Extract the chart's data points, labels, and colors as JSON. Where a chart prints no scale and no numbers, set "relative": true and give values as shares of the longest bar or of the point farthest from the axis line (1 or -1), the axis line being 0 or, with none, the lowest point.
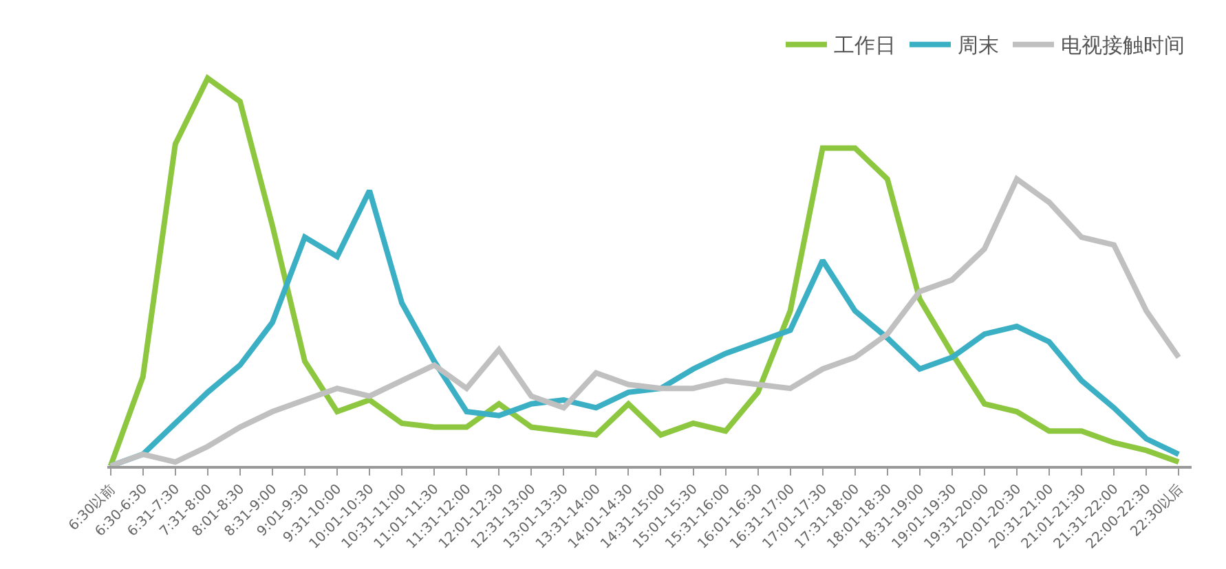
{
  "chart_data": {
    "type": "line",
    "relative": true,
    "legend": "top right",
    "marker": "none",
    "line_style": "solid",
    "categories": [
      "6:30以前",
      "6:30-6:30",
      "6:31-7:30",
      "7:31-8:00",
      "8:01-8:30",
      "8:31-9:00",
      "9:01-9:30",
      "9:31-10:00",
      "10:01-10:30",
      "10:31-11:00",
      "11:01-11:30",
      "11:31-12:00",
      "12:01-12:30",
      "12:31-13:00",
      "13:01-13:30",
      "13:31-14:00",
      "14:01-14:30",
      "14:31-15:00",
      "15:01-15:30",
      "15:31-16:00",
      "16:01-16:30",
      "16:31-17:00",
      "17:01-17:30",
      "17:31-18:00",
      "18:01-18:30",
      "18:31-19:00",
      "19:01-19:30",
      "19:31-20:00",
      "20:01-20:30",
      "20:31-21:00",
      "21:01-21:30",
      "21:31-22:00",
      "22:00-22:30",
      "22:30以后"
    ],
    "series": [
      {
        "name": "工作日",
        "color": "#8dc63f",
        "values": [
          0,
          0.23,
          0.83,
          1,
          0.94,
          0.62,
          0.27,
          0.14,
          0.17,
          0.11,
          0.1,
          0.1,
          0.16,
          0.1,
          0.09,
          0.08,
          0.16,
          0.08,
          0.11,
          0.09,
          0.19,
          0.4,
          0.82,
          0.82,
          0.74,
          0.43,
          0.29,
          0.16,
          0.14,
          0.09,
          0.09,
          0.06,
          0.04,
          0.01
        ]
      },
      {
        "name": "周末",
        "color": "#3bafc4",
        "values": [
          0,
          0.03,
          0.11,
          0.19,
          0.26,
          0.37,
          0.59,
          0.54,
          0.71,
          0.42,
          0.27,
          0.14,
          0.13,
          0.16,
          0.17,
          0.15,
          0.19,
          0.2,
          0.25,
          0.29,
          0.32,
          0.35,
          0.53,
          0.4,
          0.33,
          0.25,
          0.28,
          0.34,
          0.36,
          0.32,
          0.22,
          0.15,
          0.07,
          0.03
        ]
      },
      {
        "name": "电视接触时间",
        "color": "#c0c0c0",
        "values": [
          0,
          0.03,
          0.01,
          0.05,
          0.1,
          0.14,
          0.17,
          0.2,
          0.18,
          0.22,
          0.26,
          0.2,
          0.3,
          0.18,
          0.15,
          0.24,
          0.21,
          0.2,
          0.2,
          0.22,
          0.21,
          0.2,
          0.25,
          0.28,
          0.34,
          0.45,
          0.48,
          0.56,
          0.74,
          0.68,
          0.59,
          0.57,
          0.4,
          0.28
        ]
      }
    ]
  }
}
